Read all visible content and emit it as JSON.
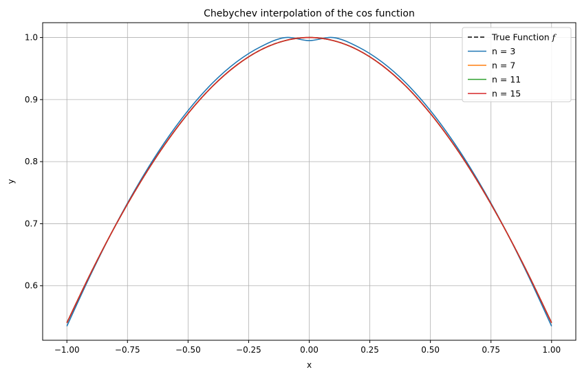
{
  "chart_data": {
    "type": "line",
    "title": "Chebychev interpolation of the cos function",
    "xlabel": "x",
    "ylabel": "y",
    "xlim": [
      -1.1,
      1.1
    ],
    "ylim": [
      0.5122,
      1.0239
    ],
    "xticks": [
      -1.0,
      -0.75,
      -0.5,
      -0.25,
      0.0,
      0.25,
      0.5,
      0.75,
      1.0
    ],
    "xtick_labels": [
      "−1.00",
      "−0.75",
      "−0.50",
      "−0.25",
      "0.00",
      "0.25",
      "0.50",
      "0.75",
      "1.00"
    ],
    "yticks": [
      0.6,
      0.7,
      0.8,
      0.9,
      1.0
    ],
    "ytick_labels": [
      "0.6",
      "0.7",
      "0.8",
      "0.9",
      "1.0"
    ],
    "grid": true,
    "legend_position": "top-right",
    "x": [
      -1.0,
      -0.9,
      -0.8,
      -0.7,
      -0.6,
      -0.5,
      -0.4,
      -0.3,
      -0.2,
      -0.1,
      0.0,
      0.1,
      0.2,
      0.3,
      0.4,
      0.5,
      0.6,
      0.7,
      0.8,
      0.9,
      1.0
    ],
    "series": [
      {
        "name": "True Function $f$",
        "legend_label": "True Function ",
        "legend_math": "f",
        "color": "#000000",
        "dashed": true,
        "values": [
          0.5403,
          0.6216,
          0.6967,
          0.7648,
          0.8253,
          0.8776,
          0.9211,
          0.9553,
          0.9801,
          0.995,
          1.0,
          0.995,
          0.9801,
          0.9553,
          0.9211,
          0.8776,
          0.8253,
          0.7648,
          0.6967,
          0.6216,
          0.5403
        ]
      },
      {
        "name": "n = 3",
        "color": "#1f77b4",
        "dashed": false,
        "values": [
          0.5349,
          0.6193,
          0.6971,
          0.7672,
          0.8291,
          0.8823,
          0.9263,
          0.9606,
          0.9852,
          0.9999,
          0.995,
          0.9999,
          0.9852,
          0.9606,
          0.9263,
          0.8823,
          0.8291,
          0.7672,
          0.6971,
          0.6193,
          0.5349
        ]
      },
      {
        "name": "n = 7",
        "color": "#ff7f0e",
        "dashed": false,
        "values": [
          0.5403,
          0.6216,
          0.6967,
          0.7648,
          0.8253,
          0.8776,
          0.9211,
          0.9553,
          0.9801,
          0.995,
          1.0,
          0.995,
          0.9801,
          0.9553,
          0.9211,
          0.8776,
          0.8253,
          0.7648,
          0.6967,
          0.6216,
          0.5403
        ]
      },
      {
        "name": "n = 11",
        "color": "#2ca02c",
        "dashed": false,
        "values": [
          0.5403,
          0.6216,
          0.6967,
          0.7648,
          0.8253,
          0.8776,
          0.9211,
          0.9553,
          0.9801,
          0.995,
          1.0,
          0.995,
          0.9801,
          0.9553,
          0.9211,
          0.8776,
          0.8253,
          0.7648,
          0.6967,
          0.6216,
          0.5403
        ]
      },
      {
        "name": "n = 15",
        "color": "#d62728",
        "dashed": false,
        "values": [
          0.5403,
          0.6216,
          0.6967,
          0.7648,
          0.8253,
          0.8776,
          0.9211,
          0.9553,
          0.9801,
          0.995,
          1.0,
          0.995,
          0.9801,
          0.9553,
          0.9211,
          0.8776,
          0.8253,
          0.7648,
          0.6967,
          0.6216,
          0.5403
        ]
      }
    ]
  }
}
